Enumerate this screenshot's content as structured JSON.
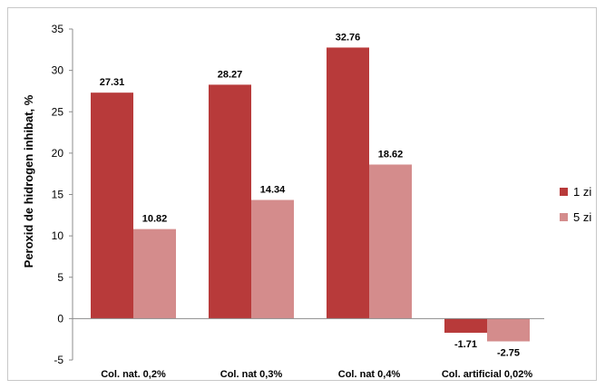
{
  "chart_data": {
    "type": "bar",
    "title": "",
    "xlabel": "",
    "ylabel": "Peroxid de hidrogen inhibat, %",
    "ylim": [
      -5,
      35
    ],
    "yticks": [
      -5,
      0,
      5,
      10,
      15,
      20,
      25,
      30,
      35
    ],
    "grid": false,
    "legend_position": "right",
    "categories": [
      "Col. nat. 0,2%",
      "Col. nat 0,3%",
      "Col. nat 0,4%",
      "Col. artificial 0,02%"
    ],
    "series": [
      {
        "name": "1 zi",
        "color": "#b83a3a",
        "values": [
          27.31,
          28.27,
          32.76,
          -1.71
        ],
        "labels": [
          "27.31",
          "28.27",
          "32.76",
          "-1.71"
        ]
      },
      {
        "name": "5 zi",
        "color": "#d48c8c",
        "values": [
          10.82,
          14.34,
          18.62,
          -2.75
        ],
        "labels": [
          "10.82",
          "14.34",
          "18.62",
          "-2.75"
        ]
      }
    ]
  }
}
